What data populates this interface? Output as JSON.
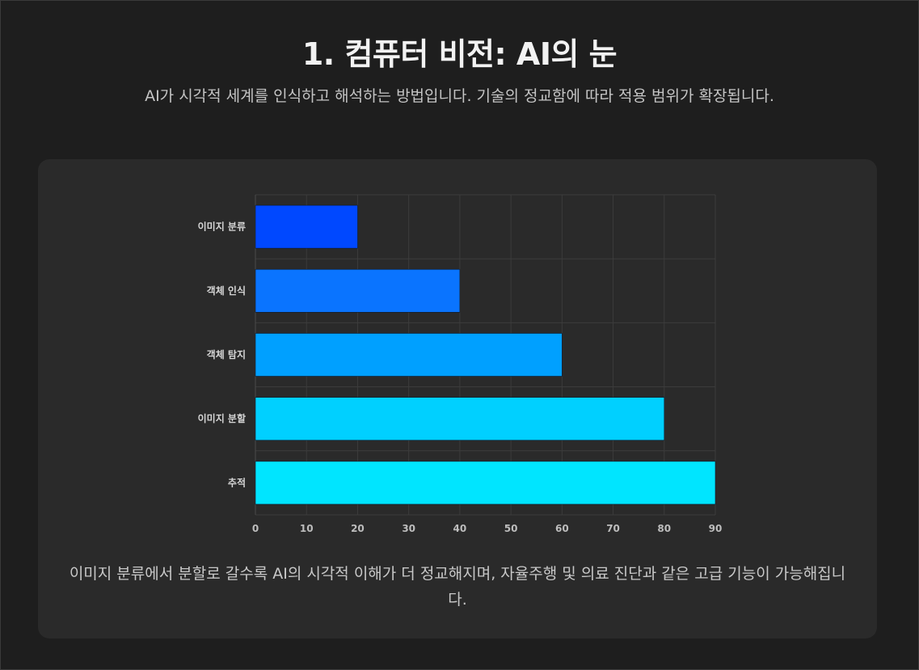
{
  "header": {
    "title": "1. 컴퓨터 비전: AI의 눈",
    "subtitle": "AI가 시각적 세계를 인식하고 해석하는 방법입니다. 기술의 정교함에 따라 적용 범위가 확장됩니다."
  },
  "caption": "이미지 분류에서 분할로 갈수록 AI의 시각적 이해가 더 정교해지며, 자율주행 및 의료 진단과 같은 고급 기능이 가능해집니다.",
  "chart_data": {
    "type": "bar",
    "orientation": "horizontal",
    "categories": [
      "이미지 분류",
      "객체 인식",
      "객체 탐지",
      "이미지 분할",
      "추적"
    ],
    "values": [
      20,
      40,
      60,
      80,
      90
    ],
    "colors": [
      "#0048ff",
      "#0a74ff",
      "#00a0ff",
      "#00d0ff",
      "#00e5ff"
    ],
    "xlim": [
      0,
      90
    ],
    "xticks": [
      "0",
      "10",
      "20",
      "30",
      "40",
      "50",
      "60",
      "70",
      "80",
      "90"
    ],
    "grid": true,
    "legend": "none"
  }
}
